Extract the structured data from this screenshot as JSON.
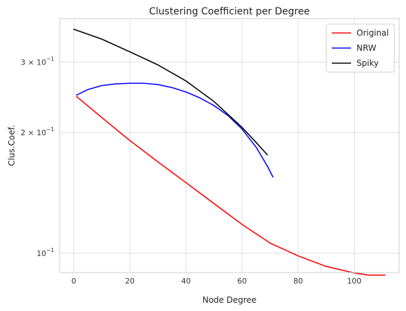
{
  "chart_data": {
    "type": "line",
    "title": "Clustering Coefficient per Degree",
    "xlabel": "Node Degree",
    "ylabel": "Clus.Coef.",
    "x_scale": "linear",
    "y_scale": "log",
    "xlim": [
      -5,
      116
    ],
    "ylim": [
      0.0895,
      0.385
    ],
    "x_ticks": [
      0,
      20,
      40,
      60,
      80,
      100
    ],
    "x_tick_labels": [
      "0",
      "20",
      "40",
      "60",
      "80",
      "100"
    ],
    "y_ticks": [
      {
        "value": 0.3,
        "base": "3 × 10",
        "exp": "−1"
      },
      {
        "value": 0.2,
        "base": "2 × 10",
        "exp": "−1"
      },
      {
        "value": 0.1,
        "base": "10",
        "exp": "−1"
      }
    ],
    "grid": true,
    "legend_position": "top-right",
    "series": [
      {
        "name": "Original",
        "color": "#ff0000",
        "x": [
          1,
          10,
          20,
          30,
          40,
          50,
          60,
          70,
          80,
          90,
          100,
          105,
          111
        ],
        "y": [
          0.246,
          0.218,
          0.191,
          0.169,
          0.15,
          0.133,
          0.118,
          0.106,
          0.0985,
          0.0927,
          0.0893,
          0.0882,
          0.0882
        ]
      },
      {
        "name": "NRW",
        "color": "#0000ff",
        "x": [
          1,
          5,
          10,
          15,
          20,
          25,
          30,
          35,
          40,
          45,
          50,
          55,
          60,
          65,
          69,
          71
        ],
        "y": [
          0.248,
          0.256,
          0.262,
          0.2645,
          0.2655,
          0.2655,
          0.2635,
          0.259,
          0.2525,
          0.244,
          0.2335,
          0.2205,
          0.204,
          0.184,
          0.165,
          0.155
        ]
      },
      {
        "name": "Spiky",
        "color": "#000000",
        "x": [
          0,
          10,
          20,
          30,
          40,
          50,
          60,
          65,
          69
        ],
        "y": [
          0.362,
          0.342,
          0.318,
          0.295,
          0.269,
          0.239,
          0.206,
          0.189,
          0.176
        ]
      }
    ]
  }
}
